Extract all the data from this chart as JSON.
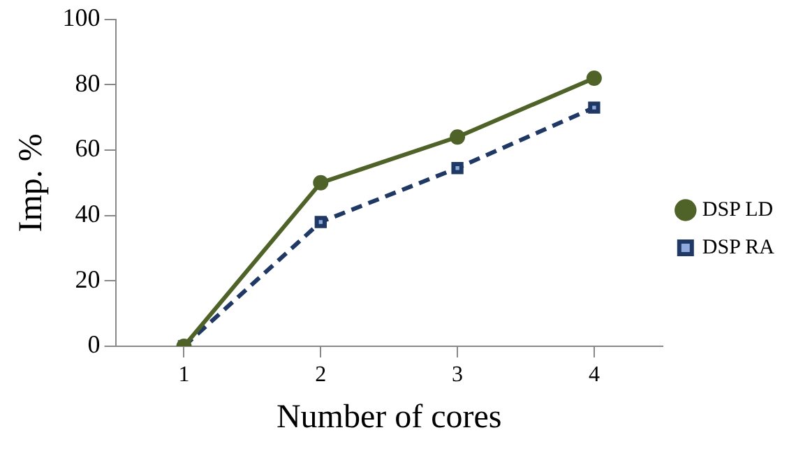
{
  "chart_data": {
    "type": "line",
    "xlabel": "Number of cores",
    "ylabel": "Imp. %",
    "categories": [
      "1",
      "2",
      "3",
      "4"
    ],
    "series": [
      {
        "name": "DSP LD",
        "color": "#4f6228",
        "values": [
          0,
          50,
          64,
          82
        ],
        "marker": "circle",
        "line_style": "solid"
      },
      {
        "name": "DSP RA",
        "color": "#1f3864",
        "values": [
          0,
          38,
          54.5,
          73
        ],
        "marker": "square",
        "line_style": "dashed"
      }
    ],
    "ylim": [
      0,
      100
    ],
    "yticks": [
      0,
      20,
      40,
      60,
      80,
      100
    ],
    "grid": false,
    "legend": "right"
  }
}
